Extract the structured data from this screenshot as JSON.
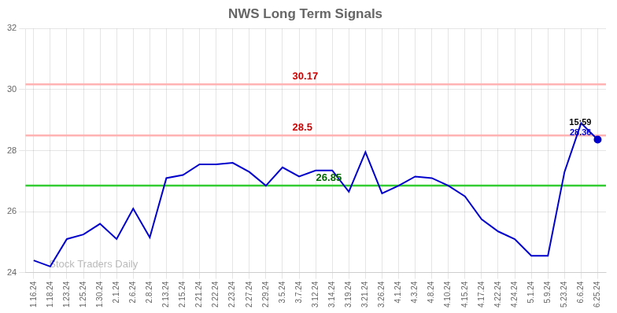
{
  "chart_data": {
    "type": "line",
    "title": "NWS Long Term Signals",
    "categories": [
      "1.16.24",
      "1.18.24",
      "1.23.24",
      "1.25.24",
      "1.30.24",
      "2.1.24",
      "2.6.24",
      "2.8.24",
      "2.13.24",
      "2.15.24",
      "2.21.24",
      "2.22.24",
      "2.23.24",
      "2.27.24",
      "2.29.24",
      "3.5.24",
      "3.7.24",
      "3.12.24",
      "3.14.24",
      "3.19.24",
      "3.21.24",
      "3.26.24",
      "4.1.24",
      "4.3.24",
      "4.8.24",
      "4.10.24",
      "4.15.24",
      "4.17.24",
      "4.22.24",
      "4.24.24",
      "5.1.24",
      "5.9.24",
      "5.23.24",
      "6.6.24",
      "6.25.24"
    ],
    "values": [
      24.4,
      24.2,
      25.1,
      25.25,
      25.6,
      25.1,
      26.1,
      25.15,
      27.1,
      27.2,
      27.55,
      27.55,
      27.6,
      27.3,
      26.85,
      27.45,
      27.15,
      27.35,
      27.35,
      26.65,
      27.95,
      26.6,
      26.85,
      27.15,
      27.1,
      26.85,
      26.5,
      25.75,
      25.35,
      25.1,
      24.55,
      24.55,
      27.3,
      28.9,
      28.36
    ],
    "color": "#0000cc",
    "ylim": [
      24,
      32
    ],
    "yticks": [
      24,
      26,
      28,
      30,
      32
    ],
    "grid": true,
    "hlines": [
      {
        "value": 30.17,
        "label": "30.17",
        "color": "#ffb3b3",
        "label_color": "#cc0000"
      },
      {
        "value": 28.5,
        "label": "28.5",
        "color": "#ffb3b3",
        "label_color": "#cc0000"
      },
      {
        "value": 26.85,
        "label": "26.85",
        "color": "#33cc33",
        "label_color": "#006600"
      }
    ],
    "annotations": [
      {
        "text": "15:59",
        "color": "#000000"
      },
      {
        "text": "28.36",
        "color": "#0000cc"
      }
    ],
    "watermark": {
      "text": "Stock Traders Daily",
      "color": "#bbbbbb"
    }
  }
}
